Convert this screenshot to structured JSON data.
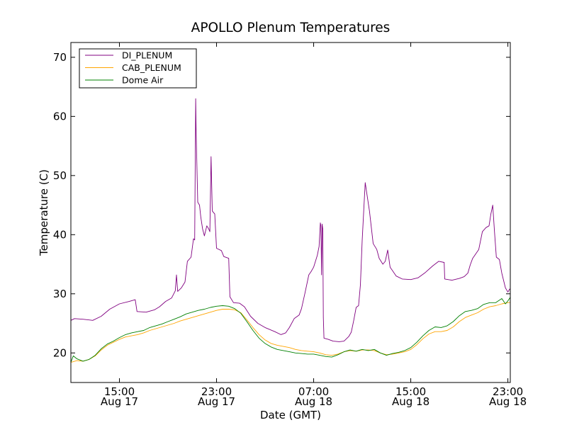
{
  "chart_data": {
    "type": "line",
    "title": "APOLLO Plenum Temperatures",
    "xlabel": "Date (GMT)",
    "ylabel": "Temperature (C)",
    "x_unit": "hours since Aug 17 00:00 GMT",
    "xlim": [
      11.0,
      47.2
    ],
    "ylim": [
      15,
      72.5
    ],
    "yticks": [
      20,
      30,
      40,
      50,
      60,
      70
    ],
    "xticks": [
      {
        "value": 15,
        "time": "15:00",
        "date": "Aug 17"
      },
      {
        "value": 23,
        "time": "23:00",
        "date": "Aug 17"
      },
      {
        "value": 31,
        "time": "07:00",
        "date": "Aug 18"
      },
      {
        "value": 39,
        "time": "15:00",
        "date": "Aug 18"
      },
      {
        "value": 47,
        "time": "23:00",
        "date": "Aug 18"
      }
    ],
    "legend_position": "top-left",
    "series": [
      {
        "name": "DI_PLENUM",
        "color": "#800080",
        "points": [
          [
            11.0,
            25.5
          ],
          [
            11.3,
            25.8
          ],
          [
            12.0,
            25.7
          ],
          [
            12.8,
            25.5
          ],
          [
            13.5,
            26.2
          ],
          [
            14.2,
            27.4
          ],
          [
            15.0,
            28.3
          ],
          [
            15.8,
            28.7
          ],
          [
            16.3,
            29.0
          ],
          [
            16.45,
            27.0
          ],
          [
            17.2,
            26.9
          ],
          [
            17.9,
            27.3
          ],
          [
            18.3,
            27.8
          ],
          [
            18.8,
            28.7
          ],
          [
            19.3,
            29.3
          ],
          [
            19.6,
            30.5
          ],
          [
            19.7,
            33.2
          ],
          [
            19.8,
            30.4
          ],
          [
            20.1,
            31.0
          ],
          [
            20.4,
            32.0
          ],
          [
            20.6,
            35.5
          ],
          [
            20.9,
            36.2
          ],
          [
            21.1,
            39.3
          ],
          [
            21.2,
            39.1
          ],
          [
            21.28,
            63.0
          ],
          [
            21.32,
            57.0
          ],
          [
            21.45,
            45.5
          ],
          [
            21.6,
            45.0
          ],
          [
            21.7,
            43.0
          ],
          [
            21.85,
            41.0
          ],
          [
            22.0,
            39.8
          ],
          [
            22.2,
            41.5
          ],
          [
            22.35,
            41.0
          ],
          [
            22.45,
            40.5
          ],
          [
            22.55,
            53.2
          ],
          [
            22.65,
            44.0
          ],
          [
            22.85,
            43.5
          ],
          [
            23.0,
            37.7
          ],
          [
            23.4,
            37.3
          ],
          [
            23.6,
            36.3
          ],
          [
            24.0,
            36.0
          ],
          [
            24.1,
            29.5
          ],
          [
            24.4,
            28.5
          ],
          [
            24.9,
            28.4
          ],
          [
            25.3,
            27.8
          ],
          [
            25.8,
            26.2
          ],
          [
            26.4,
            25.0
          ],
          [
            27.0,
            24.3
          ],
          [
            27.8,
            23.6
          ],
          [
            28.3,
            23.1
          ],
          [
            28.7,
            23.4
          ],
          [
            29.0,
            24.3
          ],
          [
            29.4,
            25.8
          ],
          [
            29.8,
            26.4
          ],
          [
            30.0,
            27.5
          ],
          [
            30.3,
            30.3
          ],
          [
            30.6,
            33.2
          ],
          [
            30.8,
            33.8
          ],
          [
            31.0,
            34.5
          ],
          [
            31.3,
            36.5
          ],
          [
            31.45,
            38.0
          ],
          [
            31.55,
            42.0
          ],
          [
            31.6,
            41.5
          ],
          [
            31.65,
            33.2
          ],
          [
            31.7,
            41.8
          ],
          [
            31.75,
            41.0
          ],
          [
            31.8,
            26.0
          ],
          [
            31.85,
            22.5
          ],
          [
            32.2,
            22.3
          ],
          [
            32.6,
            22.0
          ],
          [
            33.1,
            21.9
          ],
          [
            33.5,
            22.0
          ],
          [
            33.9,
            22.8
          ],
          [
            34.1,
            23.5
          ],
          [
            34.3,
            25.5
          ],
          [
            34.5,
            27.7
          ],
          [
            34.7,
            28.0
          ],
          [
            34.85,
            31.5
          ],
          [
            35.0,
            39.0
          ],
          [
            35.15,
            45.0
          ],
          [
            35.25,
            48.8
          ],
          [
            35.4,
            46.7
          ],
          [
            35.6,
            44.0
          ],
          [
            35.9,
            38.5
          ],
          [
            36.2,
            37.5
          ],
          [
            36.4,
            36.0
          ],
          [
            36.7,
            35.0
          ],
          [
            36.9,
            35.5
          ],
          [
            37.1,
            37.4
          ],
          [
            37.3,
            34.5
          ],
          [
            37.5,
            33.9
          ],
          [
            37.8,
            33.0
          ],
          [
            38.3,
            32.5
          ],
          [
            39.0,
            32.4
          ],
          [
            39.6,
            32.7
          ],
          [
            40.2,
            33.6
          ],
          [
            40.8,
            34.7
          ],
          [
            41.3,
            35.5
          ],
          [
            41.75,
            35.3
          ],
          [
            41.8,
            32.5
          ],
          [
            42.4,
            32.3
          ],
          [
            43.0,
            32.6
          ],
          [
            43.4,
            32.9
          ],
          [
            43.7,
            33.5
          ],
          [
            43.9,
            34.9
          ],
          [
            44.1,
            36.0
          ],
          [
            44.6,
            37.5
          ],
          [
            44.9,
            40.5
          ],
          [
            45.2,
            41.2
          ],
          [
            45.45,
            41.5
          ],
          [
            45.6,
            43.5
          ],
          [
            45.75,
            45.0
          ],
          [
            45.9,
            40.5
          ],
          [
            46.05,
            36.2
          ],
          [
            46.3,
            35.8
          ],
          [
            46.5,
            33.5
          ],
          [
            46.8,
            31.0
          ],
          [
            47.0,
            30.3
          ],
          [
            47.15,
            30.8
          ],
          [
            47.3,
            30.5
          ],
          [
            47.5,
            30.1
          ],
          [
            47.6,
            30.0
          ]
        ]
      },
      {
        "name": "CAB_PLENUM",
        "color": "#FFA500",
        "points": [
          [
            11.0,
            18.4
          ],
          [
            11.5,
            18.7
          ],
          [
            12.0,
            18.6
          ],
          [
            12.5,
            18.9
          ],
          [
            13.0,
            19.5
          ],
          [
            13.5,
            20.5
          ],
          [
            14.0,
            21.3
          ],
          [
            14.5,
            21.8
          ],
          [
            15.0,
            22.3
          ],
          [
            15.5,
            22.7
          ],
          [
            16.0,
            22.9
          ],
          [
            16.5,
            23.1
          ],
          [
            17.0,
            23.4
          ],
          [
            17.5,
            23.8
          ],
          [
            18.0,
            24.1
          ],
          [
            18.5,
            24.4
          ],
          [
            19.0,
            24.7
          ],
          [
            19.5,
            25.0
          ],
          [
            20.0,
            25.4
          ],
          [
            20.5,
            25.7
          ],
          [
            21.0,
            26.0
          ],
          [
            21.5,
            26.3
          ],
          [
            22.0,
            26.6
          ],
          [
            22.5,
            26.9
          ],
          [
            23.0,
            27.2
          ],
          [
            23.5,
            27.4
          ],
          [
            24.0,
            27.4
          ],
          [
            24.5,
            27.3
          ],
          [
            25.0,
            26.8
          ],
          [
            25.5,
            25.6
          ],
          [
            26.0,
            24.3
          ],
          [
            26.5,
            23.1
          ],
          [
            27.0,
            22.2
          ],
          [
            27.5,
            21.6
          ],
          [
            28.0,
            21.3
          ],
          [
            28.5,
            21.1
          ],
          [
            29.0,
            20.9
          ],
          [
            29.5,
            20.6
          ],
          [
            30.0,
            20.4
          ],
          [
            30.5,
            20.3
          ],
          [
            31.0,
            20.2
          ],
          [
            31.5,
            20.0
          ],
          [
            32.0,
            19.7
          ],
          [
            32.5,
            19.6
          ],
          [
            33.0,
            19.8
          ],
          [
            33.5,
            20.2
          ],
          [
            34.0,
            20.4
          ],
          [
            34.5,
            20.3
          ],
          [
            35.0,
            20.5
          ],
          [
            35.5,
            20.5
          ],
          [
            36.0,
            20.4
          ],
          [
            36.5,
            20.0
          ],
          [
            37.0,
            19.7
          ],
          [
            37.5,
            19.8
          ],
          [
            38.0,
            20.0
          ],
          [
            38.5,
            20.2
          ],
          [
            39.0,
            20.6
          ],
          [
            39.5,
            21.4
          ],
          [
            40.0,
            22.4
          ],
          [
            40.5,
            23.2
          ],
          [
            41.0,
            23.6
          ],
          [
            41.5,
            23.6
          ],
          [
            42.0,
            23.8
          ],
          [
            42.5,
            24.4
          ],
          [
            43.0,
            25.3
          ],
          [
            43.5,
            26.0
          ],
          [
            44.0,
            26.4
          ],
          [
            44.5,
            26.8
          ],
          [
            45.0,
            27.4
          ],
          [
            45.5,
            27.8
          ],
          [
            46.0,
            28.0
          ],
          [
            46.5,
            28.3
          ],
          [
            47.0,
            28.5
          ],
          [
            47.5,
            28.6
          ],
          [
            47.6,
            28.5
          ]
        ]
      },
      {
        "name": "Dome Air",
        "color": "#008000",
        "points": [
          [
            11.0,
            18.4
          ],
          [
            11.2,
            19.5
          ],
          [
            11.5,
            19.0
          ],
          [
            12.0,
            18.6
          ],
          [
            12.5,
            18.9
          ],
          [
            13.0,
            19.6
          ],
          [
            13.5,
            20.7
          ],
          [
            14.0,
            21.5
          ],
          [
            14.5,
            22.0
          ],
          [
            15.0,
            22.6
          ],
          [
            15.5,
            23.1
          ],
          [
            16.0,
            23.4
          ],
          [
            16.5,
            23.6
          ],
          [
            17.0,
            23.8
          ],
          [
            17.5,
            24.3
          ],
          [
            18.0,
            24.6
          ],
          [
            18.5,
            24.9
          ],
          [
            19.0,
            25.3
          ],
          [
            19.5,
            25.7
          ],
          [
            20.0,
            26.1
          ],
          [
            20.5,
            26.6
          ],
          [
            21.0,
            26.9
          ],
          [
            21.5,
            27.2
          ],
          [
            22.0,
            27.4
          ],
          [
            22.5,
            27.7
          ],
          [
            23.0,
            27.9
          ],
          [
            23.5,
            28.0
          ],
          [
            24.0,
            27.9
          ],
          [
            24.5,
            27.5
          ],
          [
            25.0,
            26.7
          ],
          [
            25.5,
            25.3
          ],
          [
            26.0,
            23.8
          ],
          [
            26.5,
            22.5
          ],
          [
            27.0,
            21.6
          ],
          [
            27.5,
            21.0
          ],
          [
            28.0,
            20.6
          ],
          [
            28.5,
            20.4
          ],
          [
            29.0,
            20.2
          ],
          [
            29.5,
            20.0
          ],
          [
            30.0,
            19.9
          ],
          [
            30.5,
            19.8
          ],
          [
            31.0,
            19.8
          ],
          [
            31.5,
            19.6
          ],
          [
            32.0,
            19.4
          ],
          [
            32.5,
            19.3
          ],
          [
            33.0,
            19.7
          ],
          [
            33.5,
            20.2
          ],
          [
            34.0,
            20.5
          ],
          [
            34.5,
            20.3
          ],
          [
            35.0,
            20.6
          ],
          [
            35.5,
            20.4
          ],
          [
            36.0,
            20.6
          ],
          [
            36.5,
            20.0
          ],
          [
            37.0,
            19.6
          ],
          [
            37.5,
            19.9
          ],
          [
            38.0,
            20.1
          ],
          [
            38.5,
            20.4
          ],
          [
            39.0,
            20.9
          ],
          [
            39.5,
            21.8
          ],
          [
            40.0,
            22.9
          ],
          [
            40.5,
            23.8
          ],
          [
            41.0,
            24.4
          ],
          [
            41.5,
            24.3
          ],
          [
            42.0,
            24.6
          ],
          [
            42.5,
            25.3
          ],
          [
            43.0,
            26.3
          ],
          [
            43.5,
            27.0
          ],
          [
            44.0,
            27.2
          ],
          [
            44.5,
            27.5
          ],
          [
            45.0,
            28.2
          ],
          [
            45.5,
            28.5
          ],
          [
            46.0,
            28.5
          ],
          [
            46.5,
            29.2
          ],
          [
            46.8,
            28.3
          ],
          [
            47.0,
            28.8
          ],
          [
            47.2,
            29.4
          ],
          [
            47.6,
            29.0
          ]
        ]
      }
    ]
  }
}
